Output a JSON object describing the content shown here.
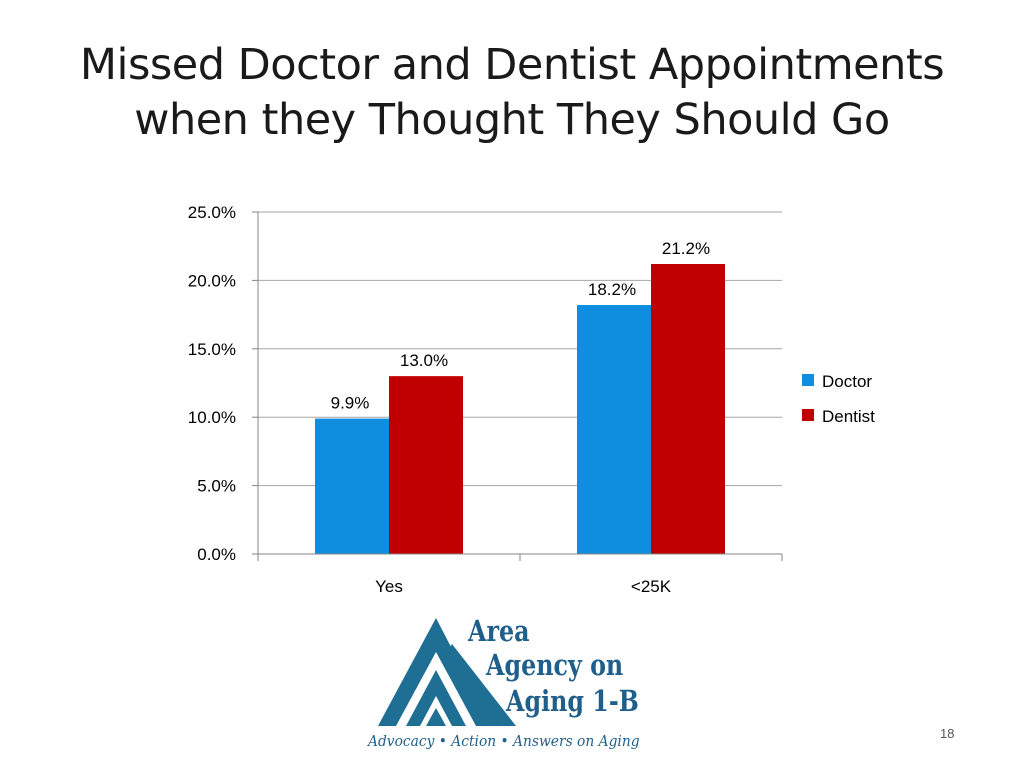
{
  "slide": {
    "title_line1": "Missed Doctor and Dentist Appointments",
    "title_line2": "when they Thought They Should Go",
    "page_number": "18"
  },
  "logo": {
    "line1": "Area",
    "line2": "Agency on",
    "line3": "Aging 1-B",
    "tagline": "Advocacy • Action • Answers on Aging",
    "color": "#1f5f8b"
  },
  "chart_data": {
    "type": "bar",
    "title": "",
    "xlabel": "",
    "ylabel": "",
    "categories": [
      "Yes",
      "<25K"
    ],
    "series": [
      {
        "name": "Doctor",
        "values": [
          9.9,
          18.2
        ],
        "labels": [
          "9.9%",
          "18.2%"
        ],
        "color": "#0f8ee0"
      },
      {
        "name": "Dentist",
        "values": [
          13.0,
          21.2
        ],
        "labels": [
          "13.0%",
          "21.2%"
        ],
        "color": "#c00000"
      }
    ],
    "ylim": [
      0,
      25
    ],
    "yticks": [
      0,
      5,
      10,
      15,
      20,
      25
    ],
    "ytick_labels": [
      "0.0%",
      "5.0%",
      "10.0%",
      "15.0%",
      "20.0%",
      "25.0%"
    ],
    "grid": true,
    "legend": "right"
  }
}
